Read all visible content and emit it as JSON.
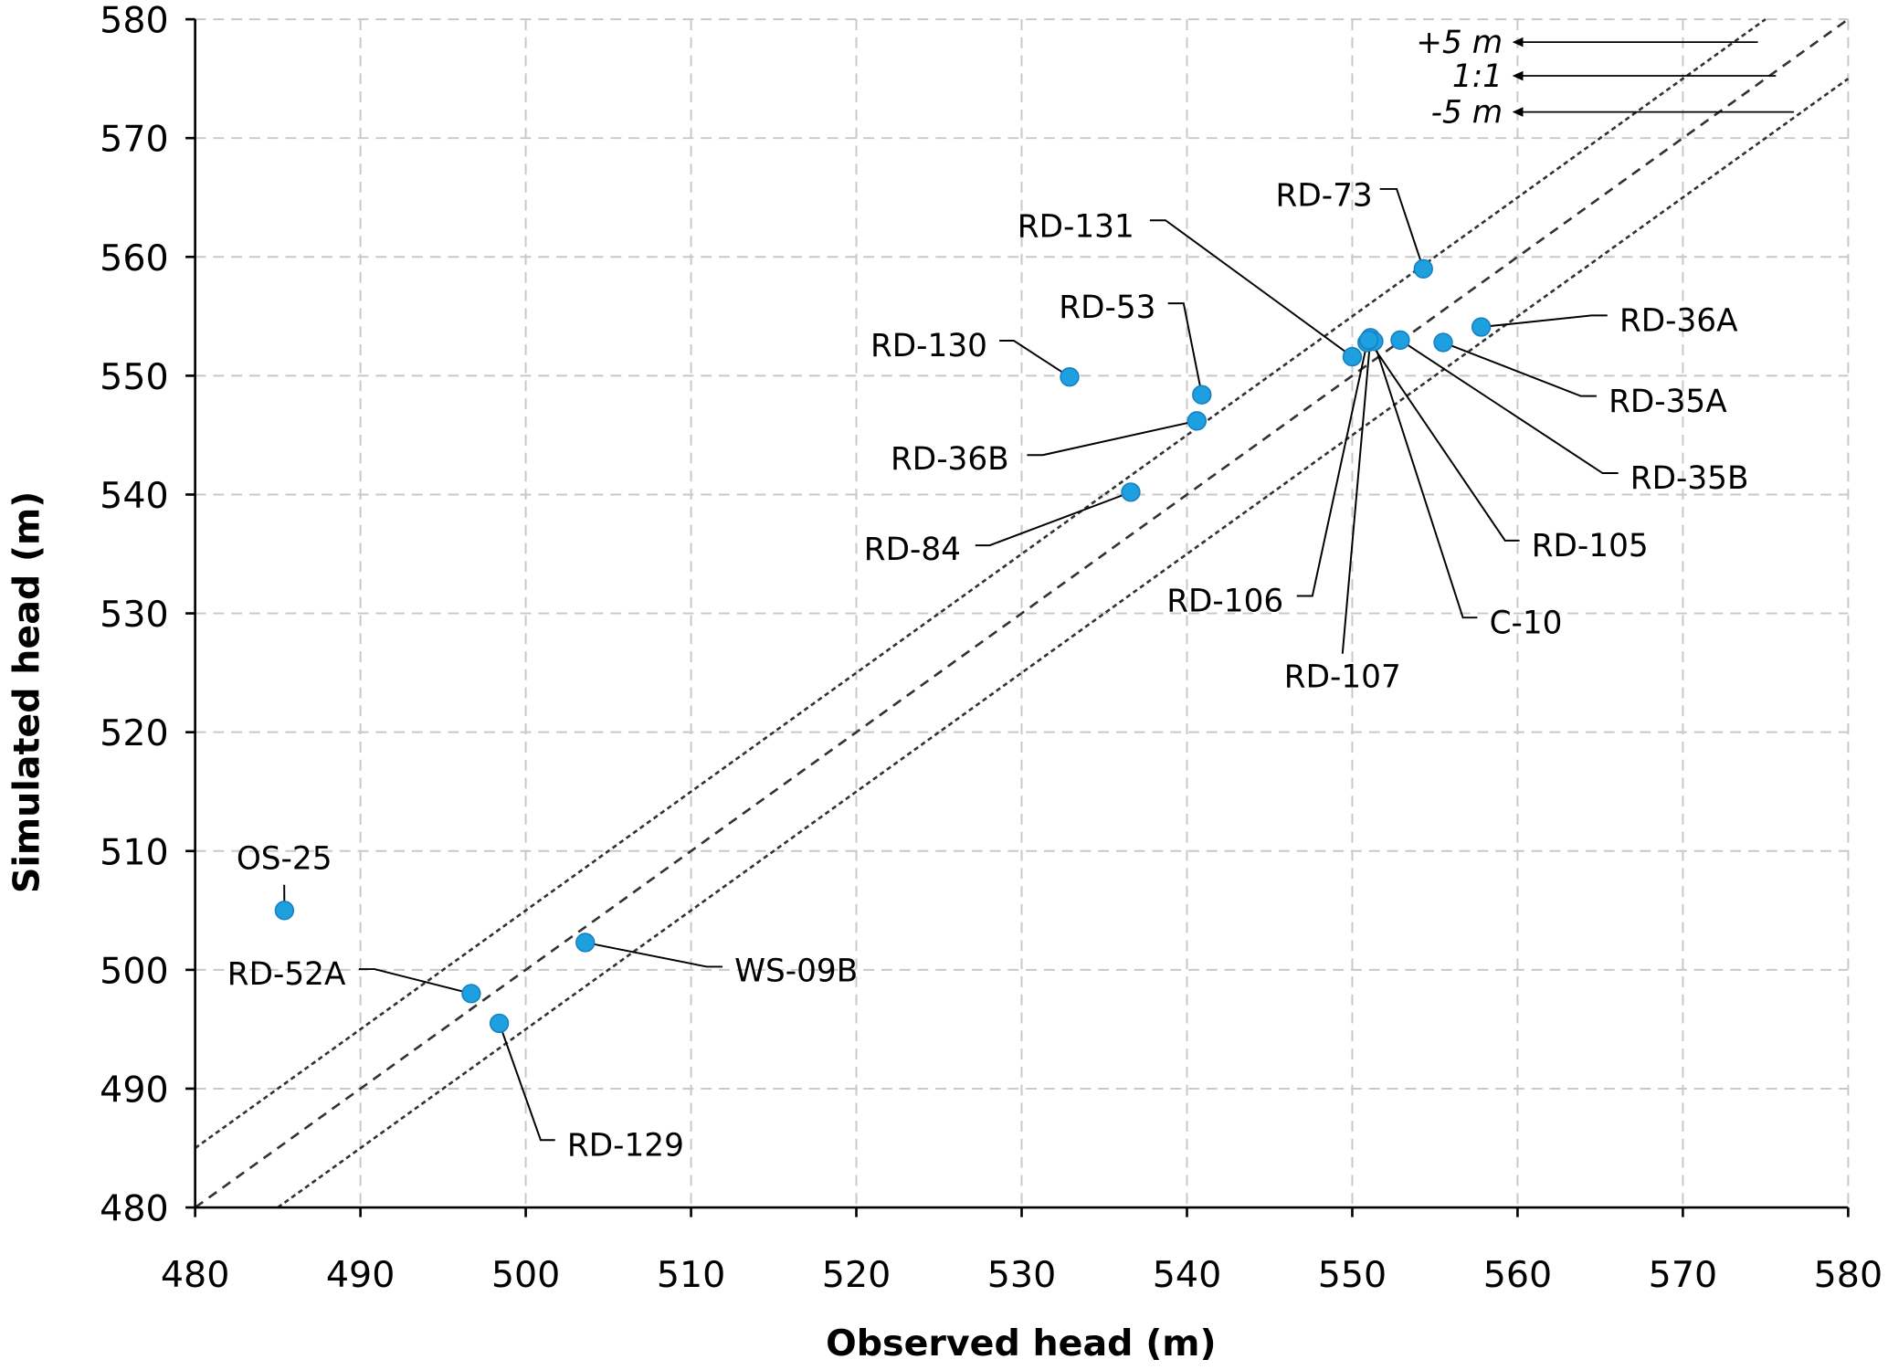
{
  "chart_data": {
    "type": "scatter",
    "title": "",
    "xlabel": "Observed head (m)",
    "ylabel": "Simulated head (m)",
    "xlim": [
      480,
      580
    ],
    "ylim": [
      480,
      580
    ],
    "xticks": [
      480,
      490,
      500,
      510,
      520,
      530,
      540,
      550,
      560,
      570,
      580
    ],
    "yticks": [
      480,
      490,
      500,
      510,
      520,
      530,
      540,
      550,
      560,
      570,
      580
    ],
    "grid": true,
    "point_color": "#1E9FE0",
    "reference_lines": [
      {
        "label": "+5 m",
        "offset": 5
      },
      {
        "label": "1:1",
        "offset": 0
      },
      {
        "label": "-5 m",
        "offset": -5
      }
    ],
    "points": [
      {
        "name": "OS-25",
        "x": 485.4,
        "y": 505.0
      },
      {
        "name": "RD-52A",
        "x": 496.7,
        "y": 498.0
      },
      {
        "name": "RD-129",
        "x": 498.4,
        "y": 495.5
      },
      {
        "name": "WS-09B",
        "x": 503.6,
        "y": 502.3
      },
      {
        "name": "RD-130",
        "x": 532.9,
        "y": 549.9
      },
      {
        "name": "RD-53",
        "x": 540.9,
        "y": 548.4
      },
      {
        "name": "RD-36B",
        "x": 540.6,
        "y": 546.2
      },
      {
        "name": "RD-84",
        "x": 536.6,
        "y": 540.2
      },
      {
        "name": "RD-73",
        "x": 554.3,
        "y": 559.0
      },
      {
        "name": "RD-131",
        "x": 550.0,
        "y": 551.6
      },
      {
        "name": "RD-106",
        "x": 550.9,
        "y": 552.8
      },
      {
        "name": "RD-107",
        "x": 551.1,
        "y": 553.2
      },
      {
        "name": "C-10",
        "x": 551.3,
        "y": 552.9
      },
      {
        "name": "RD-105",
        "x": 551.0,
        "y": 553.0
      },
      {
        "name": "RD-35B",
        "x": 552.9,
        "y": 553.0
      },
      {
        "name": "RD-35A",
        "x": 555.5,
        "y": 552.8
      },
      {
        "name": "RD-36A",
        "x": 557.8,
        "y": 554.1
      }
    ]
  }
}
